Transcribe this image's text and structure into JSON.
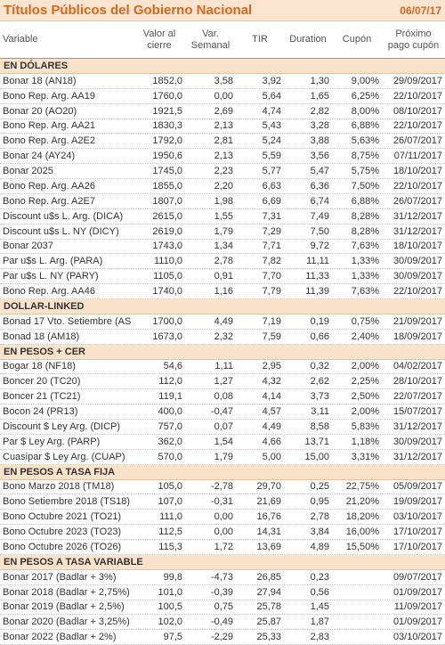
{
  "header": {
    "title": "Títulos Públicos del Gobierno Nacional",
    "date": "06/07/17"
  },
  "table": {
    "columns": [
      "Variable",
      "Valor al cierre",
      "Var. Semanal",
      "TIR",
      "Duration",
      "Cupón",
      "Próximo pago cupón"
    ],
    "sections": [
      {
        "title": "EN DÓLARES",
        "rows": [
          [
            "Bonar 18 (AN18)",
            "1852,0",
            "3,58",
            "3,92",
            "1,30",
            "9,00%",
            "29/09/2017"
          ],
          [
            "Bono Rep. Arg. AA19",
            "1760,0",
            "0,00",
            "5,64",
            "1,65",
            "6,25%",
            "22/10/2017"
          ],
          [
            "Bonar 20 (AO20)",
            "1921,5",
            "2,69",
            "4,74",
            "2,82",
            "8,00%",
            "08/10/2017"
          ],
          [
            "Bono Rep. Arg. AA21",
            "1830,3",
            "2,13",
            "5,43",
            "3,28",
            "6,88%",
            "22/10/2017"
          ],
          [
            "Bono Rep. Arg. A2E2",
            "1792,0",
            "2,81",
            "5,24",
            "3,88",
            "5,63%",
            "26/07/2017"
          ],
          [
            "Bonar 24 (AY24)",
            "1950,6",
            "2,13",
            "5,59",
            "3,56",
            "8,75%",
            "07/11/2017"
          ],
          [
            "Bonar 2025",
            "1745,0",
            "2,23",
            "5,77",
            "5,47",
            "5,75%",
            "18/10/2017"
          ],
          [
            "Bono Rep. Arg. AA26",
            "1855,0",
            "2,20",
            "6,63",
            "6,36",
            "7,50%",
            "22/10/2017"
          ],
          [
            "Bono Rep. Arg. A2E7",
            "1807,0",
            "1,98",
            "6,69",
            "6,74",
            "6,88%",
            "26/07/2017"
          ],
          [
            "Discount u$s L. Arg. (DICA)",
            "2615,0",
            "1,55",
            "7,31",
            "7,49",
            "8,28%",
            "31/12/2017"
          ],
          [
            "Discount u$s L. NY (DICY)",
            "2619,0",
            "1,79",
            "7,29",
            "7,50",
            "8,28%",
            "31/12/2017"
          ],
          [
            "Bonar 2037",
            "1743,0",
            "1,34",
            "7,71",
            "9,72",
            "7,63%",
            "18/10/2017"
          ],
          [
            "Par u$s L. Arg. (PARA)",
            "1110,0",
            "2,78",
            "7,82",
            "11,11",
            "1,33%",
            "30/09/2017"
          ],
          [
            "Par u$s L. NY (PARY)",
            "1105,0",
            "0,91",
            "7,70",
            "11,33",
            "1,33%",
            "30/09/2017"
          ],
          [
            "Bono Rep. Arg. AA46",
            "1740,0",
            "1,16",
            "7,79",
            "11,39",
            "7,63%",
            "22/10/2017"
          ]
        ]
      },
      {
        "title": "DOLLAR-LINKED",
        "rows": [
          [
            "Bonad 17 Vto. Setiembre (AS",
            "1700,0",
            "4,49",
            "7,19",
            "0,19",
            "0,75%",
            "21/09/2017"
          ],
          [
            "Bonad 18 (AM18)",
            "1673,0",
            "2,32",
            "7,59",
            "0,66",
            "2,40%",
            "18/09/2017"
          ]
        ]
      },
      {
        "title": "EN PESOS + CER",
        "rows": [
          [
            "Bogar 18 (NF18)",
            "54,6",
            "1,11",
            "2,95",
            "0,32",
            "2,00%",
            "04/02/2017"
          ],
          [
            "Boncer 20 (TC20)",
            "112,0",
            "1,27",
            "4,32",
            "2,62",
            "2,25%",
            "28/10/2017"
          ],
          [
            "Boncer 21 (TC21)",
            "119,1",
            "0,08",
            "4,14",
            "3,73",
            "2,50%",
            "22/07/2017"
          ],
          [
            "Bocon 24 (PR13)",
            "400,0",
            "-0,47",
            "4,57",
            "3,11",
            "2,00%",
            "15/07/2017"
          ],
          [
            "Discount $ Ley Arg. (DICP)",
            "757,0",
            "0,07",
            "4,49",
            "8,58",
            "5,83%",
            "31/12/2017"
          ],
          [
            "Par $ Ley Arg. (PARP)",
            "362,0",
            "1,54",
            "4,66",
            "13,71",
            "1,18%",
            "30/09/2017"
          ],
          [
            "Cuasipar $ Ley Arg. (CUAP)",
            "570,0",
            "1,79",
            "5,00",
            "15,00",
            "3,31%",
            "31/12/2017"
          ]
        ]
      },
      {
        "title": "EN PESOS A TASA FIJA",
        "rows": [
          [
            "Bono Marzo 2018 (TM18)",
            "105,0",
            "-2,78",
            "29,70",
            "0,25",
            "22,75%",
            "05/09/2017"
          ],
          [
            "Bono Setiembre 2018 (TS18)",
            "107,0",
            "-0,31",
            "21,69",
            "0,95",
            "21,20%",
            "19/09/2017"
          ],
          [
            "Bono Octubre 2021 (TO21)",
            "111,0",
            "0,00",
            "16,76",
            "2,78",
            "18,20%",
            "03/10/2017"
          ],
          [
            "Bono Octubre 2023 (TO23)",
            "112,5",
            "0,00",
            "14,31",
            "3,84",
            "16,00%",
            "17/10/2017"
          ],
          [
            "Bono Octubre 2026 (TO26)",
            "115,3",
            "1,72",
            "13,69",
            "4,89",
            "15,50%",
            "17/10/2017"
          ]
        ]
      },
      {
        "title": "EN PESOS A TASA VARIABLE",
        "rows": [
          [
            "Bonar 2017 (Badlar + 3%)",
            "99,8",
            "-4,73",
            "26,85",
            "0,23",
            null,
            "09/07/2017"
          ],
          [
            "Bonar 2018 (Badlar + 2,75%)",
            "101,0",
            "-0,39",
            "27,94",
            "0,56",
            null,
            "01/09/2017"
          ],
          [
            "Bonar 2019 (Badlar + 2,5%)",
            "100,5",
            "0,75",
            "25,78",
            "1,45",
            null,
            "11/09/2017"
          ],
          [
            "Bonar 2020 (Badlar + 3,25%)",
            "102,0",
            "-0,49",
            "25,87",
            "1,87",
            null,
            "01/09/2017"
          ],
          [
            "Bonar 2022 (Badlar + 2%)",
            "97,5",
            "-2,29",
            "25,33",
            "2,83",
            null,
            "03/10/2017"
          ]
        ]
      }
    ]
  }
}
